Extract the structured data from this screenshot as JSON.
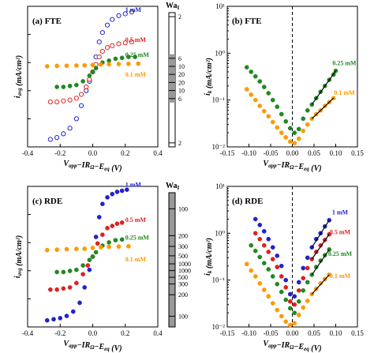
{
  "chart_data": [
    {
      "id": "a",
      "type": "scatter",
      "panel_label": "(a)",
      "title": "FTE",
      "xlabel": "V_app−IR_Ω−E_eq (V)",
      "ylabel": "i_avg (mA/cm²)",
      "xlim": [
        -0.4,
        0.4
      ],
      "ylim": [
        -0.4,
        0.35
      ],
      "x_ticks": [
        "-0.4",
        "-0.2",
        "0.0",
        "0.2",
        "0.4"
      ],
      "y_ticks": [],
      "series": [
        {
          "name": "1 mM",
          "color": "#2222cc",
          "marker": "hollow",
          "x": [
            -0.26,
            -0.22,
            -0.18,
            -0.14,
            -0.1,
            -0.07,
            -0.04,
            -0.02,
            0,
            0.02,
            0.04,
            0.06,
            0.09,
            0.12,
            0.16,
            0.2,
            0.24
          ],
          "y": [
            -0.36,
            -0.35,
            -0.33,
            -0.3,
            -0.25,
            -0.18,
            -0.1,
            -0.05,
            0,
            0.08,
            0.16,
            0.21,
            0.25,
            0.28,
            0.3,
            0.31,
            0.32
          ]
        },
        {
          "name": "0.5 mM",
          "color": "#dd2222",
          "marker": "hollow",
          "x": [
            -0.26,
            -0.22,
            -0.18,
            -0.14,
            -0.1,
            -0.07,
            -0.04,
            -0.02,
            0,
            0.02,
            0.04,
            0.06,
            0.09,
            0.12,
            0.16,
            0.2,
            0.24
          ],
          "y": [
            -0.16,
            -0.16,
            -0.155,
            -0.15,
            -0.14,
            -0.12,
            -0.08,
            -0.04,
            0,
            0.04,
            0.08,
            0.11,
            0.13,
            0.14,
            0.15,
            0.155,
            0.16
          ]
        },
        {
          "name": "0.25 mM",
          "color": "#228822",
          "marker": "filled",
          "x": [
            -0.22,
            -0.18,
            -0.14,
            -0.1,
            -0.06,
            -0.02,
            0,
            0.02,
            0.06,
            0.1,
            0.14,
            0.18,
            0.22,
            0.26
          ],
          "y": [
            -0.08,
            -0.08,
            -0.075,
            -0.07,
            -0.05,
            -0.02,
            0,
            0.02,
            0.05,
            0.06,
            0.07,
            0.075,
            0.08,
            0.08
          ]
        },
        {
          "name": "0.1 mM",
          "color": "#ff9900",
          "marker": "filled",
          "x": [
            -0.28,
            -0.22,
            -0.16,
            -0.1,
            -0.05,
            0,
            0.05,
            0.1,
            0.16,
            0.22,
            0.28
          ],
          "y": [
            0.03,
            0.032,
            0.033,
            0.034,
            0.035,
            0.037,
            0.04,
            0.041,
            0.042,
            0.043,
            0.044
          ]
        }
      ],
      "wa_scale": {
        "title": "Wa_I",
        "labels": [
          "2",
          "6",
          "10",
          "20",
          "20",
          "10",
          "6",
          "2"
        ],
        "positions": [
          0.03,
          0.34,
          0.4,
          0.46,
          0.52,
          0.58,
          0.64,
          0.97
        ]
      }
    },
    {
      "id": "b",
      "type": "scatter",
      "panel_label": "(b)",
      "title": "FTE",
      "xlabel": "V_app−IR_Ω−E_eq (V)",
      "ylabel": "i_k (mA/cm²)",
      "xlim": [
        -0.15,
        0.15
      ],
      "ylim_log10": [
        -2,
        1
      ],
      "log_y": true,
      "x_ticks": [
        "-0.15",
        "-0.10",
        "-0.05",
        "0.00",
        "0.05",
        "0.10",
        "0.15"
      ],
      "y_ticks": [
        "10⁻²",
        "10⁻¹",
        "10⁰",
        "10¹"
      ],
      "y_tick_exponents": [
        -2,
        -1,
        0,
        1
      ],
      "series": [
        {
          "name": "0.25 mM",
          "color": "#228822",
          "x": [
            -0.105,
            -0.095,
            -0.085,
            -0.075,
            -0.065,
            -0.055,
            -0.045,
            -0.035,
            -0.025,
            -0.015,
            -0.005,
            0.005,
            0.015,
            0.025,
            0.035,
            0.045,
            0.055,
            0.065,
            0.075,
            0.085,
            0.095,
            0.1
          ],
          "y": [
            0.5,
            0.4,
            0.32,
            0.25,
            0.19,
            0.14,
            0.1,
            0.072,
            0.05,
            0.035,
            0.025,
            0.02,
            0.024,
            0.04,
            0.06,
            0.08,
            0.11,
            0.15,
            0.2,
            0.27,
            0.35,
            0.42
          ]
        },
        {
          "name": "0.1 mM",
          "color": "#ff9900",
          "x": [
            -0.105,
            -0.095,
            -0.085,
            -0.075,
            -0.065,
            -0.055,
            -0.045,
            -0.035,
            -0.025,
            -0.015,
            -0.005,
            0.005,
            0.015,
            0.025,
            0.035,
            0.045,
            0.055,
            0.065,
            0.075,
            0.085,
            0.095
          ],
          "y": [
            0.17,
            0.13,
            0.1,
            0.075,
            0.058,
            0.045,
            0.034,
            0.026,
            0.02,
            0.016,
            0.013,
            0.012,
            0.015,
            0.022,
            0.03,
            0.04,
            0.05,
            0.06,
            0.075,
            0.09,
            0.11
          ]
        }
      ],
      "series_labels": [
        {
          "text": "0.25 mM",
          "color": "#228822",
          "x": 0.12,
          "y": 0.55
        },
        {
          "text": "0.1 mM",
          "color": "#ff9900",
          "x": 0.12,
          "y": 0.13
        }
      ]
    },
    {
      "id": "c",
      "type": "scatter",
      "panel_label": "(c)",
      "title": "RDE",
      "xlabel": "V_app−IR_Ω−E_eq (V)",
      "ylabel": "i_avg (mA/cm²)",
      "xlim": [
        -0.4,
        0.4
      ],
      "ylim": [
        -0.32,
        0.32
      ],
      "x_ticks": [
        "-0.4",
        "-0.2",
        "0.0",
        "0.2",
        "0.4"
      ],
      "y_ticks": [],
      "series": [
        {
          "name": "1 mM",
          "color": "#2222cc",
          "x": [
            -0.28,
            -0.24,
            -0.2,
            -0.16,
            -0.12,
            -0.08,
            -0.05,
            -0.02,
            0,
            0.02,
            0.04,
            0.06,
            0.09,
            0.12,
            0.15,
            0.18,
            0.21
          ],
          "y": [
            -0.29,
            -0.285,
            -0.28,
            -0.27,
            -0.25,
            -0.21,
            -0.14,
            -0.06,
            0,
            0.09,
            0.18,
            0.24,
            0.27,
            0.285,
            0.295,
            0.3,
            0.305
          ]
        },
        {
          "name": "0.5 mM",
          "color": "#dd2222",
          "x": [
            -0.26,
            -0.22,
            -0.18,
            -0.14,
            -0.1,
            -0.06,
            -0.03,
            0,
            0.03,
            0.06,
            0.09,
            0.12,
            0.15,
            0.18
          ],
          "y": [
            -0.15,
            -0.15,
            -0.145,
            -0.14,
            -0.12,
            -0.08,
            -0.04,
            0,
            0.06,
            0.1,
            0.13,
            0.14,
            0.15,
            0.155
          ]
        },
        {
          "name": "0.25 mM",
          "color": "#228822",
          "x": [
            -0.22,
            -0.18,
            -0.14,
            -0.1,
            -0.06,
            -0.02,
            0,
            0.02,
            0.06,
            0.1,
            0.14,
            0.18
          ],
          "y": [
            -0.07,
            -0.07,
            -0.065,
            -0.06,
            -0.04,
            -0.015,
            0,
            0.02,
            0.05,
            0.065,
            0.075,
            0.078
          ]
        },
        {
          "name": "0.1 mM",
          "color": "#ff9900",
          "x": [
            -0.28,
            -0.22,
            -0.16,
            -0.1,
            -0.05,
            0,
            0.05,
            0.1,
            0.16,
            0.22
          ],
          "y": [
            0.03,
            0.032,
            0.034,
            0.035,
            0.036,
            0.04,
            0.043,
            0.045,
            0.046,
            0.047
          ]
        }
      ],
      "wa_scale": {
        "title": "Wa_I",
        "labels": [
          "100",
          "200",
          "300",
          "500",
          "1000",
          "1000",
          "500",
          "300",
          "200",
          "100"
        ],
        "positions": [
          0.12,
          0.32,
          0.4,
          0.47,
          0.53,
          0.58,
          0.63,
          0.68,
          0.76,
          0.92
        ]
      }
    },
    {
      "id": "d",
      "type": "scatter",
      "panel_label": "(d)",
      "title": "RDE",
      "xlabel": "V_app−IR_Ω−E_eq (V)",
      "ylabel": "i_k (mA/cm²)",
      "xlim": [
        -0.15,
        0.15
      ],
      "ylim_log10": [
        -2,
        1
      ],
      "log_y": true,
      "x_ticks": [
        "-0.15",
        "-0.10",
        "-0.05",
        "0.00",
        "0.05",
        "0.10",
        "0.15"
      ],
      "y_ticks": [
        "10⁻²",
        "10⁻¹",
        "10⁰",
        "10¹"
      ],
      "y_tick_exponents": [
        -2,
        -1,
        0,
        1
      ],
      "series": [
        {
          "name": "1 mM",
          "color": "#2222cc",
          "x": [
            -0.085,
            -0.075,
            -0.065,
            -0.055,
            -0.045,
            -0.035,
            -0.025,
            -0.015,
            -0.005,
            0.005,
            0.015,
            0.025,
            0.035,
            0.045,
            0.055,
            0.065,
            0.075,
            0.085
          ],
          "y": [
            2.0,
            1.5,
            1.1,
            0.75,
            0.5,
            0.33,
            0.2,
            0.1,
            0.05,
            0.045,
            0.09,
            0.18,
            0.3,
            0.5,
            0.75,
            1.0,
            1.4,
            1.9
          ]
        },
        {
          "name": "0.5 mM",
          "color": "#dd2222",
          "x": [
            -0.085,
            -0.075,
            -0.065,
            -0.055,
            -0.045,
            -0.035,
            -0.025,
            -0.015,
            -0.005,
            0.005,
            0.015,
            0.025,
            0.035,
            0.045,
            0.055,
            0.065,
            0.075,
            0.085
          ],
          "y": [
            1.0,
            0.75,
            0.55,
            0.4,
            0.28,
            0.19,
            0.12,
            0.07,
            0.035,
            0.03,
            0.06,
            0.11,
            0.18,
            0.28,
            0.4,
            0.55,
            0.72,
            0.95
          ]
        },
        {
          "name": "0.25 mM",
          "color": "#228822",
          "x": [
            -0.095,
            -0.085,
            -0.075,
            -0.065,
            -0.055,
            -0.045,
            -0.035,
            -0.025,
            -0.015,
            -0.005,
            0.005,
            0.015,
            0.025,
            0.035,
            0.045,
            0.055,
            0.065,
            0.075,
            0.085
          ],
          "y": [
            0.55,
            0.42,
            0.31,
            0.23,
            0.17,
            0.12,
            0.082,
            0.056,
            0.038,
            0.025,
            0.02,
            0.035,
            0.06,
            0.09,
            0.13,
            0.19,
            0.26,
            0.34,
            0.45
          ]
        },
        {
          "name": "0.1 mM",
          "color": "#ff9900",
          "x": [
            -0.105,
            -0.095,
            -0.085,
            -0.075,
            -0.065,
            -0.055,
            -0.045,
            -0.035,
            -0.025,
            -0.015,
            -0.005,
            0.005,
            0.015,
            0.025,
            0.035,
            0.045,
            0.055,
            0.065,
            0.075,
            0.085
          ],
          "y": [
            0.22,
            0.16,
            0.12,
            0.085,
            0.062,
            0.045,
            0.032,
            0.023,
            0.017,
            0.013,
            0.011,
            0.012,
            0.018,
            0.026,
            0.036,
            0.05,
            0.065,
            0.085,
            0.105,
            0.13
          ]
        }
      ],
      "series_labels": [
        {
          "text": "1 mM",
          "color": "#2222cc",
          "x": 0.11,
          "y": 2.5
        },
        {
          "text": "0.5 mM",
          "color": "#dd2222",
          "x": 0.11,
          "y": 0.95
        },
        {
          "text": "0.25 mM",
          "color": "#228822",
          "x": 0.11,
          "y": 0.33
        },
        {
          "text": "0.1 mM",
          "color": "#ff9900",
          "x": 0.11,
          "y": 0.11
        }
      ]
    }
  ]
}
